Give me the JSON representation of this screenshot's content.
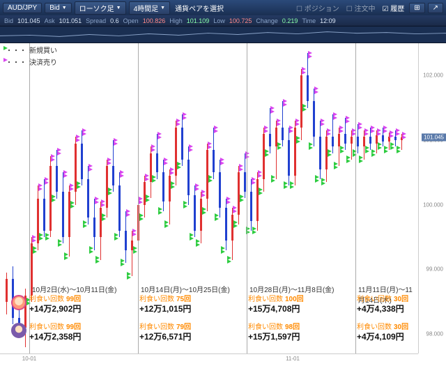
{
  "toolbar": {
    "pair": "AUD/JPY",
    "mode": "Bid",
    "style": "ローソク足",
    "timeframe": "4時間足",
    "pair_select": "通貨ペアを選択",
    "position": "ポジション",
    "pending": "注文中",
    "history": "履歴"
  },
  "status": {
    "bid_k": "Bid",
    "bid_v": "101.045",
    "ask_k": "Ask",
    "ask_v": "101.051",
    "spread_k": "Spread",
    "spread_v": "0.6",
    "open_k": "Open",
    "open_v": "100.826",
    "high_k": "High",
    "high_v": "101.109",
    "low_k": "Low",
    "low_v": "100.725",
    "change_k": "Change",
    "change_v": "0.219",
    "time_k": "Time",
    "time_v": "12:09"
  },
  "legend": {
    "buy": "新規買い",
    "sell": "決済売り"
  },
  "chart": {
    "type": "candlestick-with-markers",
    "ylim": [
      97.7,
      102.5
    ],
    "y_ticks": [
      98,
      99,
      100,
      101,
      102
    ],
    "y_labels": [
      "98.000",
      "99.000",
      "100.000",
      "101.000",
      "102.000"
    ],
    "price_tag": "101.045",
    "x_ticks": [
      0.07,
      0.7
    ],
    "x_labels": [
      "10-01",
      "11-01"
    ],
    "colors": {
      "bull_body": "#e03030",
      "bull_wick": "#e03030",
      "bear_body": "#2040d0",
      "bear_wick": "#2040d0",
      "buy_marker": "#2ecc40",
      "sell_marker": "#d946ef",
      "grid": "#aaaaaa",
      "axis_text": "#888888"
    },
    "vlines": [
      0.07,
      0.33,
      0.59,
      0.85
    ],
    "candles": [
      {
        "x": 0.015,
        "o": 98.5,
        "h": 98.95,
        "l": 98.3,
        "c": 98.85
      },
      {
        "x": 0.03,
        "o": 98.85,
        "h": 99.05,
        "l": 98.15,
        "c": 98.25
      },
      {
        "x": 0.045,
        "o": 98.25,
        "h": 98.55,
        "l": 97.95,
        "c": 98.1
      },
      {
        "x": 0.06,
        "o": 98.1,
        "h": 98.7,
        "l": 97.8,
        "c": 98.6
      },
      {
        "x": 0.075,
        "o": 98.6,
        "h": 99.5,
        "l": 98.5,
        "c": 99.4
      },
      {
        "x": 0.09,
        "o": 99.4,
        "h": 100.3,
        "l": 99.3,
        "c": 100.1
      },
      {
        "x": 0.105,
        "o": 100.1,
        "h": 100.4,
        "l": 99.5,
        "c": 99.6
      },
      {
        "x": 0.12,
        "o": 99.6,
        "h": 100.75,
        "l": 99.5,
        "c": 100.6
      },
      {
        "x": 0.135,
        "o": 100.6,
        "h": 100.85,
        "l": 100.1,
        "c": 100.2
      },
      {
        "x": 0.15,
        "o": 100.2,
        "h": 100.5,
        "l": 99.4,
        "c": 99.5
      },
      {
        "x": 0.165,
        "o": 99.5,
        "h": 100.3,
        "l": 99.2,
        "c": 100.2
      },
      {
        "x": 0.18,
        "o": 100.2,
        "h": 101.05,
        "l": 100.0,
        "c": 100.95
      },
      {
        "x": 0.195,
        "o": 100.95,
        "h": 101.15,
        "l": 100.3,
        "c": 100.4
      },
      {
        "x": 0.21,
        "o": 100.4,
        "h": 100.6,
        "l": 99.7,
        "c": 99.8
      },
      {
        "x": 0.225,
        "o": 99.8,
        "h": 100.1,
        "l": 99.3,
        "c": 99.5
      },
      {
        "x": 0.24,
        "o": 99.5,
        "h": 100.05,
        "l": 99.15,
        "c": 99.95
      },
      {
        "x": 0.255,
        "o": 99.95,
        "h": 100.7,
        "l": 99.8,
        "c": 100.6
      },
      {
        "x": 0.27,
        "o": 100.6,
        "h": 101.0,
        "l": 100.2,
        "c": 100.3
      },
      {
        "x": 0.285,
        "o": 100.3,
        "h": 100.5,
        "l": 99.5,
        "c": 99.6
      },
      {
        "x": 0.3,
        "o": 99.6,
        "h": 99.9,
        "l": 99.1,
        "c": 99.3
      },
      {
        "x": 0.315,
        "o": 99.3,
        "h": 99.6,
        "l": 98.9,
        "c": 99.45
      },
      {
        "x": 0.33,
        "o": 99.45,
        "h": 100.1,
        "l": 99.3,
        "c": 100.0
      },
      {
        "x": 0.345,
        "o": 100.0,
        "h": 100.45,
        "l": 99.8,
        "c": 100.35
      },
      {
        "x": 0.36,
        "o": 100.35,
        "h": 100.9,
        "l": 100.1,
        "c": 100.8
      },
      {
        "x": 0.375,
        "o": 100.8,
        "h": 101.1,
        "l": 100.4,
        "c": 100.5
      },
      {
        "x": 0.39,
        "o": 100.5,
        "h": 100.7,
        "l": 99.9,
        "c": 100.05
      },
      {
        "x": 0.405,
        "o": 100.05,
        "h": 100.55,
        "l": 99.7,
        "c": 100.45
      },
      {
        "x": 0.42,
        "o": 100.45,
        "h": 101.3,
        "l": 100.3,
        "c": 101.2
      },
      {
        "x": 0.435,
        "o": 101.2,
        "h": 101.4,
        "l": 100.6,
        "c": 100.7
      },
      {
        "x": 0.45,
        "o": 100.7,
        "h": 100.9,
        "l": 100.0,
        "c": 100.15
      },
      {
        "x": 0.465,
        "o": 100.15,
        "h": 100.3,
        "l": 99.5,
        "c": 99.6
      },
      {
        "x": 0.48,
        "o": 99.6,
        "h": 100.2,
        "l": 99.4,
        "c": 100.1
      },
      {
        "x": 0.495,
        "o": 100.1,
        "h": 100.95,
        "l": 99.9,
        "c": 100.85
      },
      {
        "x": 0.51,
        "o": 100.85,
        "h": 101.2,
        "l": 100.4,
        "c": 100.5
      },
      {
        "x": 0.525,
        "o": 100.5,
        "h": 100.7,
        "l": 99.8,
        "c": 99.95
      },
      {
        "x": 0.54,
        "o": 99.95,
        "h": 100.1,
        "l": 99.3,
        "c": 99.45
      },
      {
        "x": 0.555,
        "o": 99.45,
        "h": 99.95,
        "l": 99.15,
        "c": 99.85
      },
      {
        "x": 0.57,
        "o": 99.85,
        "h": 100.6,
        "l": 99.7,
        "c": 100.5
      },
      {
        "x": 0.585,
        "o": 100.5,
        "h": 100.8,
        "l": 100.1,
        "c": 100.2
      },
      {
        "x": 0.6,
        "o": 100.2,
        "h": 100.4,
        "l": 99.6,
        "c": 99.75
      },
      {
        "x": 0.615,
        "o": 99.75,
        "h": 100.5,
        "l": 99.6,
        "c": 100.4
      },
      {
        "x": 0.63,
        "o": 100.4,
        "h": 101.2,
        "l": 100.2,
        "c": 101.1
      },
      {
        "x": 0.645,
        "o": 101.1,
        "h": 101.5,
        "l": 100.8,
        "c": 100.9
      },
      {
        "x": 0.66,
        "o": 100.9,
        "h": 101.3,
        "l": 100.4,
        "c": 101.2
      },
      {
        "x": 0.675,
        "o": 101.2,
        "h": 101.6,
        "l": 100.9,
        "c": 101.0
      },
      {
        "x": 0.69,
        "o": 101.0,
        "h": 101.2,
        "l": 100.3,
        "c": 100.45
      },
      {
        "x": 0.705,
        "o": 100.45,
        "h": 101.3,
        "l": 100.3,
        "c": 101.2
      },
      {
        "x": 0.72,
        "o": 101.2,
        "h": 102.1,
        "l": 101.0,
        "c": 102.0
      },
      {
        "x": 0.735,
        "o": 102.0,
        "h": 102.35,
        "l": 101.5,
        "c": 101.6
      },
      {
        "x": 0.75,
        "o": 101.6,
        "h": 101.8,
        "l": 100.9,
        "c": 101.05
      },
      {
        "x": 0.765,
        "o": 101.05,
        "h": 101.3,
        "l": 100.4,
        "c": 100.55
      },
      {
        "x": 0.78,
        "o": 100.55,
        "h": 101.15,
        "l": 100.35,
        "c": 101.05
      },
      {
        "x": 0.795,
        "o": 101.05,
        "h": 101.4,
        "l": 100.8,
        "c": 100.9
      },
      {
        "x": 0.81,
        "o": 100.9,
        "h": 101.2,
        "l": 100.6,
        "c": 101.1
      },
      {
        "x": 0.825,
        "o": 101.1,
        "h": 101.35,
        "l": 100.85,
        "c": 100.95
      },
      {
        "x": 0.84,
        "o": 100.95,
        "h": 101.15,
        "l": 100.7,
        "c": 101.05
      },
      {
        "x": 0.855,
        "o": 101.05,
        "h": 101.25,
        "l": 100.8,
        "c": 100.9
      },
      {
        "x": 0.87,
        "o": 100.9,
        "h": 101.15,
        "l": 100.7,
        "c": 101.05
      },
      {
        "x": 0.885,
        "o": 101.05,
        "h": 101.2,
        "l": 100.85,
        "c": 100.95
      },
      {
        "x": 0.9,
        "o": 100.95,
        "h": 101.15,
        "l": 100.8,
        "c": 101.08
      },
      {
        "x": 0.915,
        "o": 101.08,
        "h": 101.2,
        "l": 100.9,
        "c": 100.98
      },
      {
        "x": 0.93,
        "o": 100.98,
        "h": 101.12,
        "l": 100.85,
        "c": 101.05
      },
      {
        "x": 0.945,
        "o": 101.05,
        "h": 101.15,
        "l": 100.9,
        "c": 101.0
      },
      {
        "x": 0.96,
        "o": 101.0,
        "h": 101.1,
        "l": 100.85,
        "c": 101.04
      }
    ]
  },
  "periods": [
    {
      "x": 0.07,
      "w": 0.26,
      "hdr": "10月2日(水)～10月11日(金)",
      "t0": {
        "pc_l": "利食い回数",
        "pc_v": "99回",
        "profit": "+14万2,902円"
      },
      "t1": {
        "pc_l": "利食い回数",
        "pc_v": "99回",
        "profit": "+14万2,358円"
      }
    },
    {
      "x": 0.33,
      "w": 0.26,
      "hdr": "10月14日(月)～10月25日(金)",
      "t0": {
        "pc_l": "利食い回数",
        "pc_v": "75回",
        "profit": "+12万1,015円"
      },
      "t1": {
        "pc_l": "利食い回数",
        "pc_v": "79回",
        "profit": "+12万6,571円"
      }
    },
    {
      "x": 0.59,
      "w": 0.26,
      "hdr": "10月28日(月)～11月8日(金)",
      "t0": {
        "pc_l": "利食い回数",
        "pc_v": "100回",
        "profit": "+15万4,708円"
      },
      "t1": {
        "pc_l": "利食い回数",
        "pc_v": "98回",
        "profit": "+15万1,597円"
      }
    },
    {
      "x": 0.85,
      "w": 0.15,
      "hdr": "11月11日(月)～11月14日(木)",
      "t0": {
        "pc_l": "利食い回数",
        "pc_v": "30回",
        "profit": "+4万4,338円"
      },
      "t1": {
        "pc_l": "利食い回数",
        "pc_v": "30回",
        "profit": "+4万4,109円"
      }
    }
  ]
}
